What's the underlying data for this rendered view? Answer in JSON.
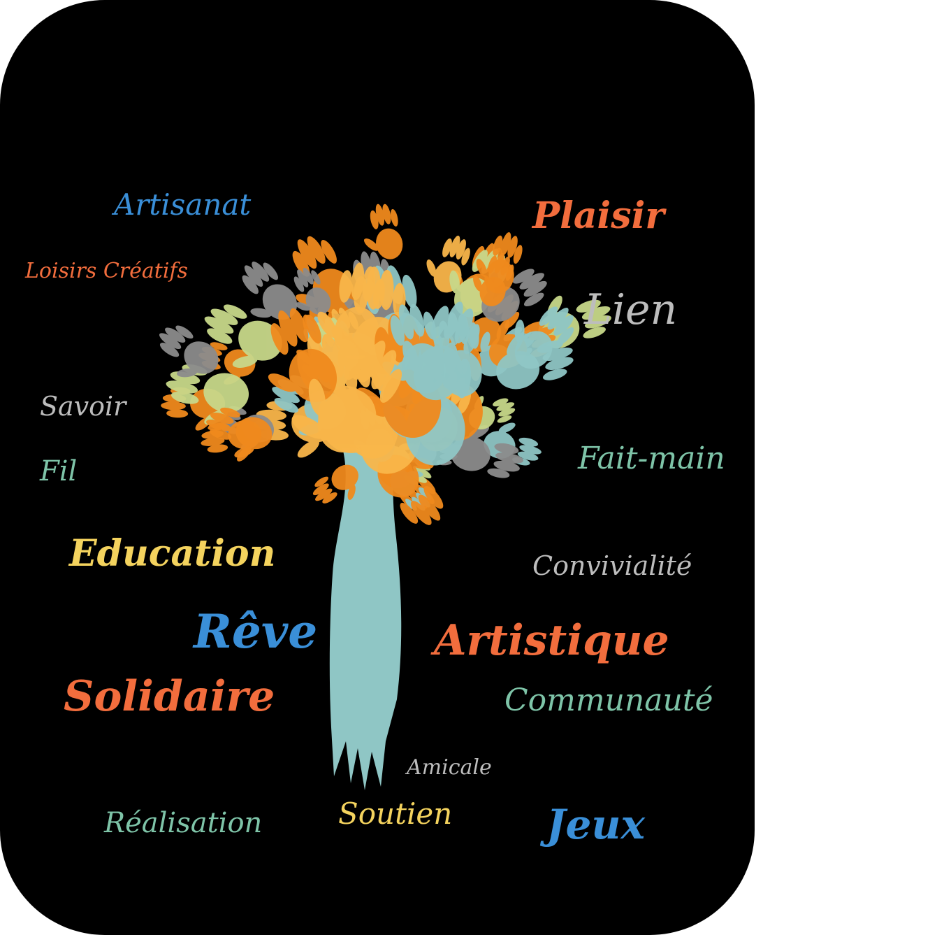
{
  "colors": {
    "background": "#000000",
    "blue": "#3a8fd8",
    "orange": "#f26d3d",
    "grey": "#bdbdbd",
    "teal": "#7ec4a8",
    "yellow": "#f4d35e",
    "trunk": "#8fc6c5",
    "hand_palette": [
      "#8fc6c5",
      "#f9b64a",
      "#f08a1d",
      "#c8d88a",
      "#8c8c8c"
    ]
  },
  "illustration": {
    "name": "handprint-tree"
  },
  "words": [
    {
      "text": "Artisanat",
      "color": "blue"
    },
    {
      "text": "Plaisir",
      "color": "orange"
    },
    {
      "text": "Loisirs Créatifs",
      "color": "orange"
    },
    {
      "text": "Lien",
      "color": "grey"
    },
    {
      "text": "Savoir",
      "color": "grey"
    },
    {
      "text": "Fil",
      "color": "teal"
    },
    {
      "text": "Fait-main",
      "color": "teal"
    },
    {
      "text": "Education",
      "color": "yellow"
    },
    {
      "text": "Convivialité",
      "color": "grey"
    },
    {
      "text": "Rêve",
      "color": "blue"
    },
    {
      "text": "Artistique",
      "color": "orange"
    },
    {
      "text": "Solidaire",
      "color": "orange"
    },
    {
      "text": "Communauté",
      "color": "teal"
    },
    {
      "text": "Amicale",
      "color": "grey"
    },
    {
      "text": "Soutien",
      "color": "yellow"
    },
    {
      "text": "Réalisation",
      "color": "teal"
    },
    {
      "text": "Jeux",
      "color": "blue"
    }
  ]
}
